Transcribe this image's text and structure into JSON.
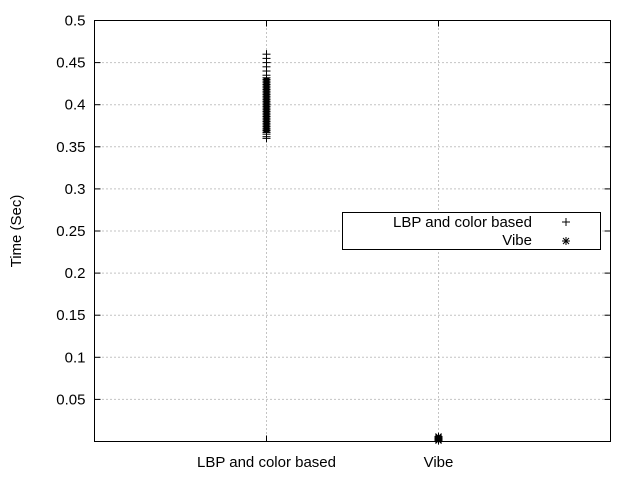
{
  "chart_data": {
    "type": "scatter",
    "title": "",
    "xlabel": "",
    "ylabel": "Time (Sec)",
    "categories": [
      "LBP and color based",
      "Vibe"
    ],
    "ylim": [
      0,
      0.5
    ],
    "yticks": [
      0.05,
      0.1,
      0.15,
      0.2,
      0.25,
      0.3,
      0.35,
      0.4,
      0.45,
      0.5
    ],
    "ytick_labels": [
      "0.05",
      "0.1",
      "0.15",
      "0.2",
      "0.25",
      "0.3",
      "0.35",
      "0.4",
      "0.45",
      "0.5"
    ],
    "grid": true,
    "legend_position": "right",
    "series": [
      {
        "name": "LBP and color based",
        "marker": "plus",
        "category": "LBP and color based",
        "values": [
          0.36,
          0.362,
          0.365,
          0.367,
          0.369,
          0.37,
          0.372,
          0.374,
          0.376,
          0.378,
          0.38,
          0.382,
          0.384,
          0.386,
          0.388,
          0.39,
          0.392,
          0.394,
          0.396,
          0.398,
          0.4,
          0.402,
          0.404,
          0.406,
          0.408,
          0.41,
          0.412,
          0.414,
          0.416,
          0.418,
          0.42,
          0.422,
          0.424,
          0.426,
          0.428,
          0.43,
          0.432,
          0.435,
          0.44,
          0.445,
          0.45,
          0.455,
          0.46
        ]
      },
      {
        "name": "Vibe",
        "marker": "star",
        "category": "Vibe",
        "values": [
          0.001,
          0.002,
          0.003,
          0.004,
          0.005,
          0.006
        ]
      }
    ]
  }
}
